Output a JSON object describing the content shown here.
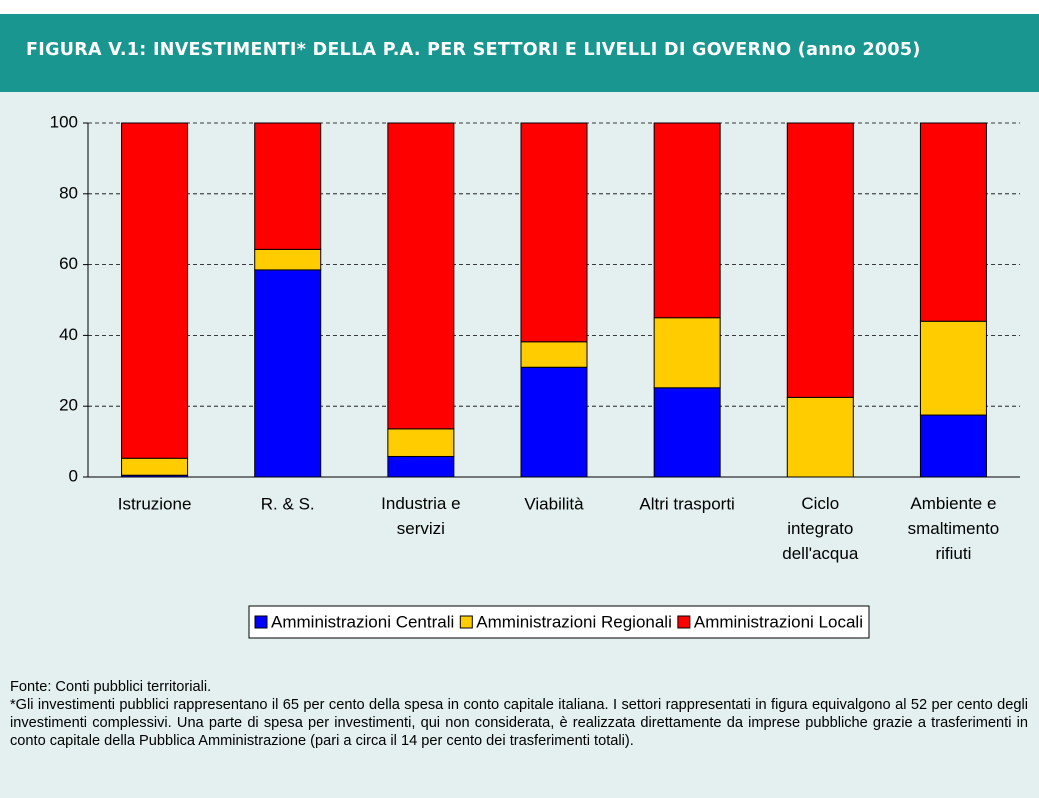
{
  "chart_data": {
    "type": "stacked_bar",
    "title": "FIGURA V.1: INVESTIMENTI* DELLA P.A. PER SETTORI E LIVELLI DI GOVERNO (anno 2005)",
    "categories": [
      "Istruzione",
      "R. & S.",
      "Industria e\nservizi",
      "Viabilità",
      "Altri trasporti",
      "Ciclo\nintegrato\ndell'acqua",
      "Ambiente e\nsmaltimento\nrifiuti"
    ],
    "series": [
      {
        "name": "Amministrazioni Centrali",
        "color": "#0000ff",
        "values": [
          0.5,
          58.5,
          5.8,
          31,
          25.2,
          0,
          17.5
        ]
      },
      {
        "name": "Amministrazioni Regionali",
        "color": "#ffcc00",
        "values": [
          4.8,
          5.8,
          7.8,
          7.2,
          19.8,
          22.5,
          26.5
        ]
      },
      {
        "name": "Amministrazioni Locali",
        "color": "#ff0000",
        "values": [
          94.7,
          35.7,
          86.4,
          61.8,
          55,
          77.5,
          56
        ]
      }
    ],
    "ylim": [
      0,
      100
    ],
    "yticks": [
      0,
      20,
      40,
      60,
      80,
      100
    ],
    "grid": true,
    "legend": "bottom",
    "source": "Fonte: Conti pubblici territoriali.",
    "note": "*Gli investimenti pubblici rappresentano il 65 per cento della spesa in conto capitale italiana. I settori rappresentati in figura equivalgono al 52 per cento degli investimenti complessivi. Una parte di spesa per investimenti, qui non considerata, è realizzata direttamente da imprese pubbliche grazie a trasferimenti in conto capitale della Pubblica Amministrazione (pari a circa il 14 per cento dei trasferimenti totali)."
  }
}
